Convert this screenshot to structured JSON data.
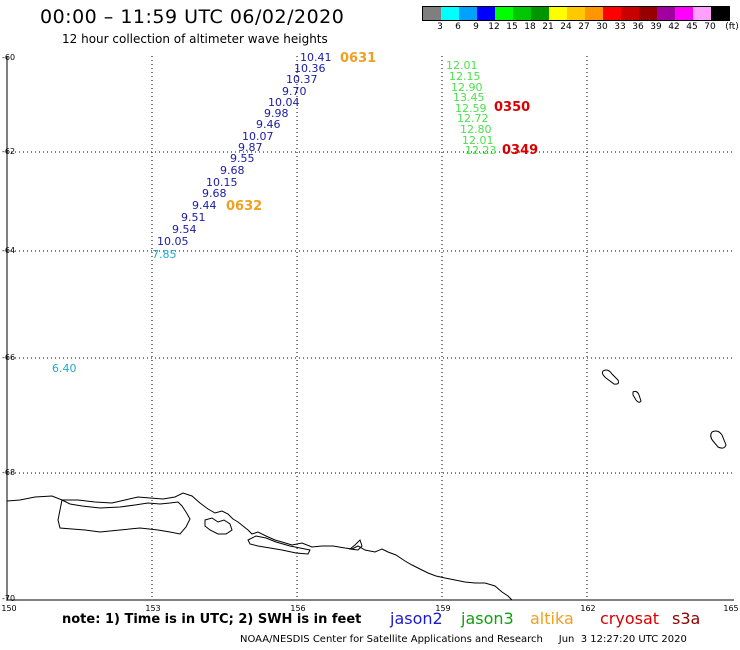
{
  "header": {
    "title": "00:00 – 11:59 UTC 06/02/2020",
    "subtitle": "12 hour collection of altimeter wave heights"
  },
  "legend": {
    "colors": [
      "#7f7f7f",
      "#00ffff",
      "#00a0ff",
      "#0000ff",
      "#00ff00",
      "#00c800",
      "#009600",
      "#ffff00",
      "#ffc800",
      "#ff9600",
      "#ff0000",
      "#c80000",
      "#960000",
      "#a000a0",
      "#ff00ff",
      "#ffa0ff",
      "#000000"
    ],
    "labels": [
      "3",
      "6",
      "9",
      "12",
      "15",
      "18",
      "21",
      "24",
      "27",
      "30",
      "33",
      "36",
      "39",
      "42",
      "45",
      "70"
    ],
    "unit": "(ft)"
  },
  "axes": {
    "y_labels": [
      "-60",
      "-62",
      "-64",
      "-66",
      "-68",
      "-70"
    ],
    "x_labels": [
      "150",
      "153",
      "156",
      "159",
      "162",
      "165"
    ]
  },
  "jason2_track": [
    "10.41",
    "10.36",
    "10.37",
    "9.70",
    "10.04",
    "9.98",
    "9.46",
    "10.07",
    "9.87",
    "9.55",
    "9.68",
    "10.15",
    "9.68",
    "9.44",
    "9.51",
    "9.54",
    "10.05"
  ],
  "jason2_times": [
    "0631",
    "0632"
  ],
  "jason3_track": [
    "12.01",
    "12.15",
    "12.90",
    "13.45",
    "12.59",
    "12.72",
    "12.80",
    "12.01",
    "12.23"
  ],
  "jason3_times": [
    "0350",
    "0349"
  ],
  "isolated_values": [
    "7.85",
    "6.40"
  ],
  "note": "note:  1) Time is in UTC;  2) SWH is in feet",
  "satellites": [
    "jason2",
    "jason3",
    "altika",
    "cryosat",
    "s3a"
  ],
  "footer": "NOAA/NESDIS Center for Satellite Applications and Research     Jun  3 12:27:20 UTC 2020"
}
